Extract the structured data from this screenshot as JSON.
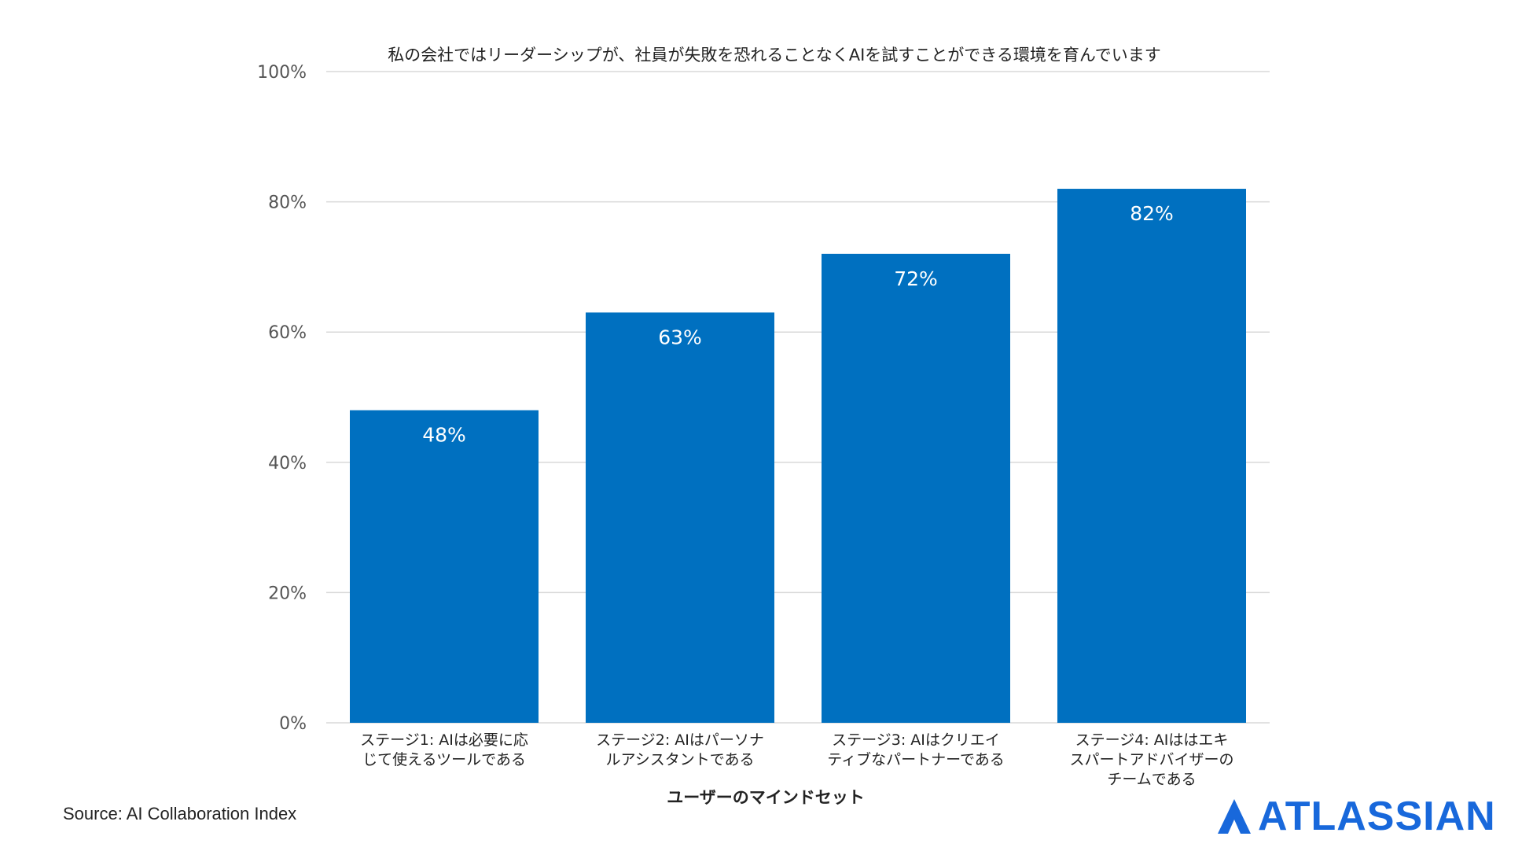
{
  "colors": {
    "bar": "#0070c0",
    "grid": "#d9d9d9",
    "brand": "#1868db"
  },
  "chart_data": {
    "type": "bar",
    "title": "私の会社ではリーダーシップが、社員が失敗を恐れることなくAIを試すことができる環境を育んでいます",
    "xlabel": "ユーザーのマインドセット",
    "ylabel": "",
    "ylim": [
      0,
      100
    ],
    "yticks": [
      "0%",
      "20%",
      "40%",
      "60%",
      "80%",
      "100%"
    ],
    "ytick_values": [
      0,
      20,
      40,
      60,
      80,
      100
    ],
    "grid": true,
    "categories": [
      [
        "ステージ1: AIは必要に応",
        "じて使えるツールである"
      ],
      [
        "ステージ2:  AIはパーソナ",
        "ルアシスタントである"
      ],
      [
        "ステージ3: AIはクリエイ",
        "ティブなパートナーである"
      ],
      [
        "ステージ4: AIははエキ",
        "スパートアドバイザーの",
        "チームである"
      ]
    ],
    "values": [
      48,
      63,
      72,
      82
    ],
    "data_labels": [
      "48%",
      "63%",
      "72%",
      "82%"
    ]
  },
  "footer": {
    "source": "Source: AI Collaboration Index"
  },
  "logo": {
    "text": "ATLASSIAN",
    "icon": "atlassian-logo-icon"
  }
}
